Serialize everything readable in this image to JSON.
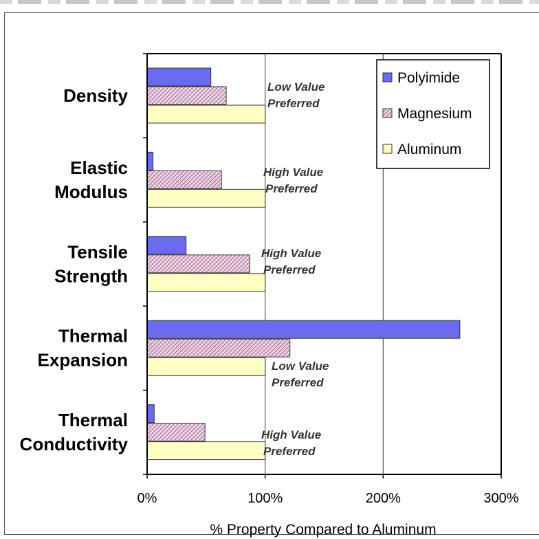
{
  "chart_data": {
    "type": "bar",
    "orientation": "horizontal",
    "categories": [
      [
        "Density"
      ],
      [
        "Elastic",
        "Modulus"
      ],
      [
        "Tensile",
        "Strength"
      ],
      [
        "Thermal",
        "Expansion"
      ],
      [
        "Thermal",
        "Conductivity"
      ]
    ],
    "series": [
      {
        "name": "Polyimide",
        "values": [
          54,
          5,
          33,
          265,
          6
        ],
        "color": "#6b6bf0",
        "pattern": "solid"
      },
      {
        "name": "Magnesium",
        "values": [
          67,
          63,
          87,
          121,
          49
        ],
        "color": "#e9c6de",
        "pattern": "crosshatch"
      },
      {
        "name": "Aluminum",
        "values": [
          100,
          100,
          100,
          100,
          100
        ],
        "color": "#ffffc4",
        "pattern": "solid"
      }
    ],
    "annotations": [
      [
        "Low Value",
        "Preferred"
      ],
      [
        "High Value",
        "Preferred"
      ],
      [
        "High Value",
        "Preferred"
      ],
      [
        "Low Value",
        "Preferred"
      ],
      [
        "High Value",
        "Preferred"
      ]
    ],
    "xlabel": "% Property Compared to Aluminum",
    "xlim": [
      0,
      300
    ],
    "xticks": [
      0,
      100,
      200,
      300
    ],
    "xtick_labels": [
      "0%",
      "100%",
      "200%",
      "300%"
    ],
    "grid": "vertical",
    "legend_position": "top-right"
  }
}
